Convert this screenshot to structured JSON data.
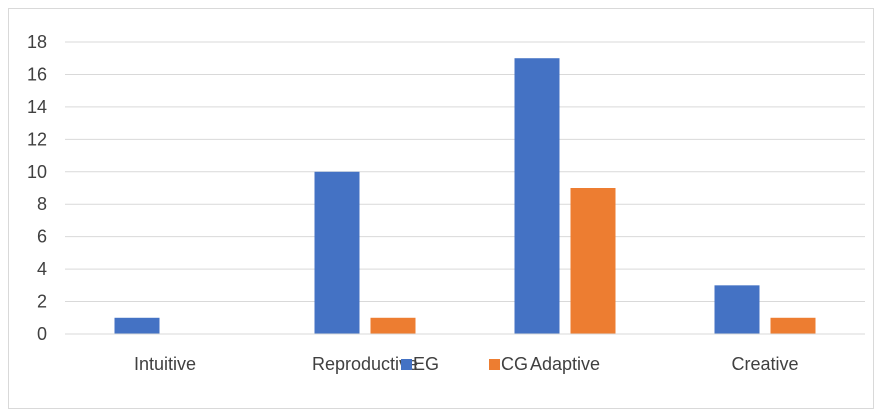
{
  "chart_data": {
    "type": "bar",
    "categories": [
      "Intuitive",
      "Reproductive",
      "Adaptive",
      "Creative"
    ],
    "series": [
      {
        "name": "EG",
        "values": [
          1,
          10,
          17,
          3
        ],
        "color": "#4472C4"
      },
      {
        "name": "CG",
        "values": [
          0,
          1,
          9,
          1
        ],
        "color": "#ED7D31"
      }
    ],
    "title": "",
    "xlabel": "",
    "ylabel": "",
    "ylim": [
      0,
      18
    ],
    "yticks": [
      0,
      2,
      4,
      6,
      8,
      10,
      12,
      14,
      16,
      18
    ],
    "grid": true,
    "legend": "bottom"
  }
}
